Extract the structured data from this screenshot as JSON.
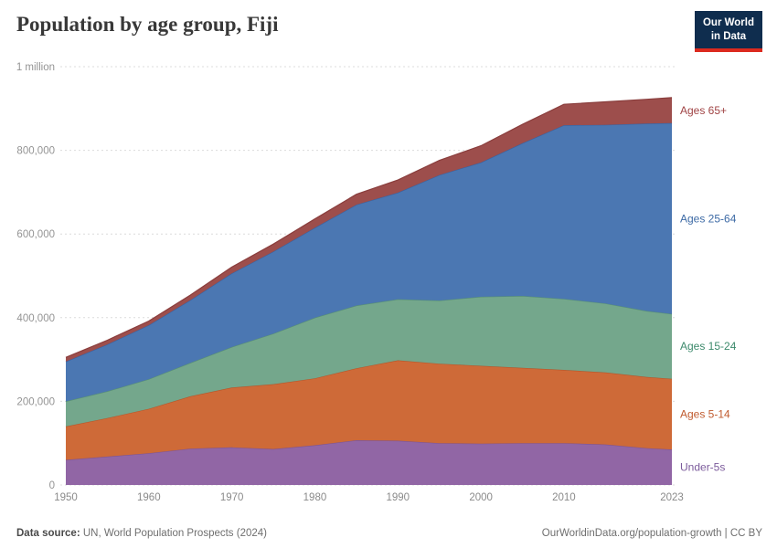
{
  "header": {
    "title": "Population by age group, Fiji",
    "logo": {
      "line1": "Our World",
      "line2": "in Data"
    }
  },
  "footer": {
    "source_label": "Data source:",
    "source_text": " UN, World Population Prospects (2024)",
    "link_text": "OurWorldinData.org/population-growth | CC BY"
  },
  "chart_data": {
    "type": "area",
    "stacked": true,
    "title": "Population by age group, Fiji",
    "xlabel": "",
    "ylabel": "",
    "ylim": [
      0,
      1000000
    ],
    "grid": "dashed",
    "legend_position": "right-inline",
    "x": [
      1950,
      1955,
      1960,
      1965,
      1970,
      1975,
      1980,
      1985,
      1990,
      1995,
      2000,
      2005,
      2010,
      2015,
      2020,
      2023
    ],
    "xticks": [
      1950,
      1960,
      1970,
      1980,
      1990,
      2000,
      2010,
      2023
    ],
    "yticks": [
      {
        "value": 0,
        "label": "0"
      },
      {
        "value": 200000,
        "label": "200,000"
      },
      {
        "value": 400000,
        "label": "400,000"
      },
      {
        "value": 600000,
        "label": "600,000"
      },
      {
        "value": 800000,
        "label": "800,000"
      },
      {
        "value": 1000000,
        "label": "1 million"
      }
    ],
    "series": [
      {
        "name": "Under-5s",
        "color": "#9166a5",
        "edge": "#7d5492",
        "label_color": "#7b5a9b",
        "values": [
          60000,
          68000,
          76000,
          87000,
          90000,
          86000,
          95000,
          107000,
          106000,
          100000,
          99000,
          100000,
          100000,
          97000,
          88000,
          85000
        ]
      },
      {
        "name": "Ages 5-14",
        "color": "#ce6a38",
        "edge": "#b5562a",
        "label_color": "#c05a2e",
        "values": [
          80000,
          92000,
          106000,
          125000,
          143000,
          155000,
          160000,
          172000,
          192000,
          190000,
          186000,
          180000,
          175000,
          172000,
          170000,
          169000
        ]
      },
      {
        "name": "Ages 15-24",
        "color": "#74a78c",
        "edge": "#578f75",
        "label_color": "#3d8a6c",
        "values": [
          60000,
          64000,
          71000,
          80000,
          97000,
          121000,
          145000,
          150000,
          146000,
          151000,
          165000,
          172000,
          170000,
          165000,
          158000,
          155000
        ]
      },
      {
        "name": "Ages 25-64",
        "color": "#4b77b2",
        "edge": "#3a62a0",
        "label_color": "#3d6aa5",
        "values": [
          95000,
          112000,
          129000,
          150000,
          176000,
          196000,
          215000,
          241000,
          255000,
          300000,
          321000,
          365000,
          415000,
          427000,
          448000,
          456000
        ]
      },
      {
        "name": "Ages 65+",
        "color": "#9d4e4c",
        "edge": "#8a3e3d",
        "label_color": "#a04344",
        "values": [
          10000,
          10000,
          10000,
          12000,
          15000,
          18000,
          21000,
          25000,
          30000,
          35000,
          40000,
          45000,
          50000,
          55000,
          58000,
          61000
        ]
      }
    ]
  }
}
